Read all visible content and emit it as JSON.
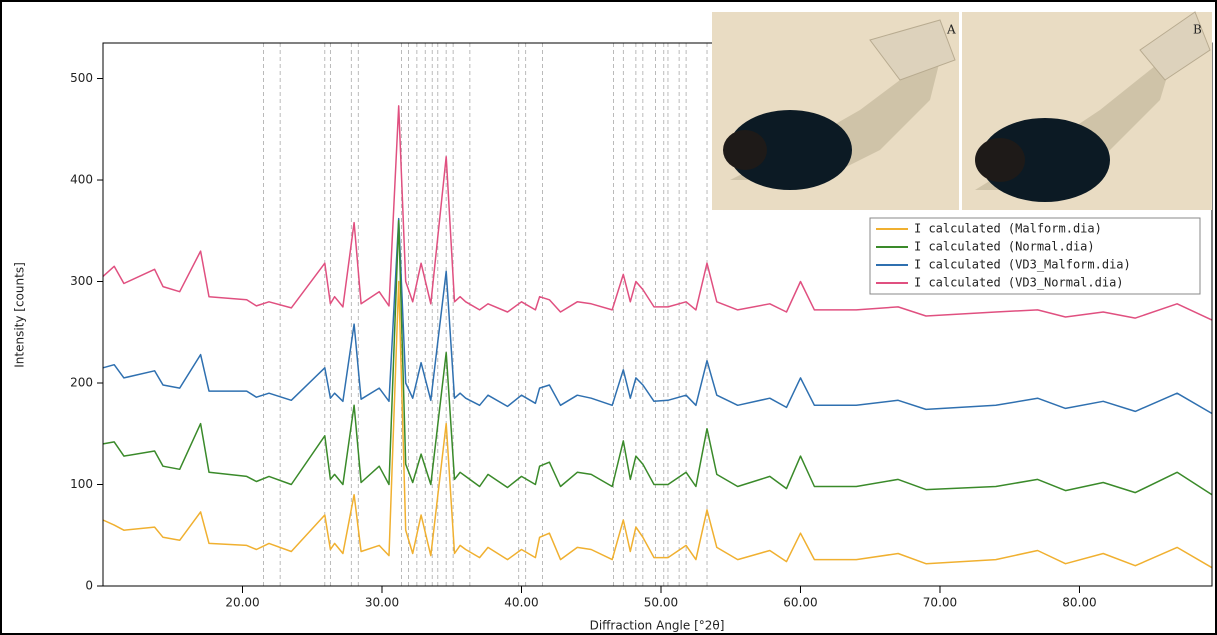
{
  "chart_data": {
    "type": "line",
    "xlabel": "Diffraction Angle [°2θ]",
    "ylabel": "Intensity [counts]",
    "x": [
      10,
      10.8,
      11.5,
      13.7,
      14.3,
      15.5,
      17.0,
      17.6,
      20.3,
      21.0,
      21.9,
      23.5,
      25.9,
      26.3,
      26.6,
      27.2,
      28.0,
      28.5,
      29.8,
      30.5,
      31.2,
      31.7,
      32.2,
      32.8,
      33.5,
      34.6,
      35.2,
      35.6,
      36.0,
      37.0,
      37.6,
      39.0,
      40.0,
      41.0,
      41.3,
      42.0,
      42.8,
      44.0,
      45.0,
      46.5,
      47.3,
      47.8,
      48.2,
      48.7,
      49.5,
      50.5,
      51.8,
      52.5,
      53.3,
      54.0,
      55.5,
      57.8,
      59.0,
      60.0,
      61.0,
      64.0,
      67.0,
      69.0,
      74.0,
      77.0,
      79.0,
      81.7,
      84.0,
      87.0,
      89.5
    ],
    "series": [
      {
        "name": "I calculated (Malform.dia)",
        "color": "#f0b030",
        "values": [
          65,
          60,
          55,
          58,
          48,
          45,
          73,
          42,
          40,
          36,
          42,
          34,
          70,
          36,
          42,
          32,
          90,
          34,
          40,
          30,
          300,
          55,
          32,
          70,
          30,
          160,
          32,
          40,
          36,
          28,
          38,
          26,
          36,
          28,
          48,
          52,
          26,
          38,
          36,
          26,
          65,
          34,
          58,
          48,
          28,
          28,
          40,
          26,
          75,
          38,
          26,
          35,
          24,
          52,
          26,
          26,
          32,
          22,
          26,
          35,
          22,
          32,
          20,
          38,
          18
        ]
      },
      {
        "name": "I calculated (Normal.dia)",
        "color": "#3a8a2a",
        "values": [
          140,
          142,
          128,
          133,
          118,
          115,
          160,
          112,
          108,
          103,
          108,
          100,
          148,
          105,
          110,
          100,
          178,
          102,
          118,
          100,
          360,
          120,
          102,
          130,
          100,
          230,
          105,
          112,
          108,
          98,
          110,
          97,
          108,
          100,
          118,
          122,
          98,
          112,
          110,
          98,
          143,
          105,
          128,
          120,
          100,
          100,
          112,
          98,
          155,
          110,
          98,
          108,
          96,
          128,
          98,
          98,
          105,
          95,
          98,
          105,
          94,
          102,
          92,
          112,
          90
        ]
      },
      {
        "name": "I calculated (VD3_Malform.dia)",
        "color": "#2f70b0",
        "values": [
          215,
          218,
          205,
          212,
          198,
          195,
          228,
          192,
          192,
          186,
          190,
          183,
          215,
          185,
          190,
          182,
          258,
          184,
          195,
          182,
          362,
          200,
          185,
          220,
          183,
          310,
          185,
          190,
          185,
          178,
          188,
          177,
          188,
          180,
          195,
          198,
          178,
          188,
          185,
          178,
          213,
          185,
          205,
          198,
          182,
          183,
          188,
          178,
          222,
          188,
          178,
          185,
          176,
          205,
          178,
          178,
          183,
          174,
          178,
          185,
          175,
          182,
          172,
          190,
          170
        ]
      },
      {
        "name": "I calculated (VD3_Normal.dia)",
        "color": "#e05080",
        "values": [
          305,
          315,
          298,
          312,
          295,
          290,
          330,
          285,
          282,
          276,
          280,
          274,
          318,
          278,
          285,
          275,
          358,
          278,
          290,
          276,
          473,
          300,
          280,
          318,
          278,
          423,
          280,
          285,
          280,
          272,
          278,
          270,
          280,
          272,
          285,
          282,
          270,
          280,
          278,
          272,
          307,
          280,
          300,
          292,
          275,
          275,
          280,
          272,
          318,
          280,
          272,
          278,
          270,
          300,
          272,
          272,
          275,
          266,
          270,
          272,
          265,
          270,
          264,
          278,
          262
        ]
      }
    ],
    "xlim": [
      10,
      89.5
    ],
    "ylim": [
      0,
      535
    ],
    "xticks": [
      {
        "value": 20,
        "label": "20.00"
      },
      {
        "value": 30,
        "label": "30.00"
      },
      {
        "value": 40,
        "label": "40.00"
      },
      {
        "value": 50,
        "label": "50.00"
      },
      {
        "value": 60,
        "label": "60.00"
      },
      {
        "value": 70,
        "label": "70.00"
      },
      {
        "value": 80,
        "label": "80.00"
      }
    ],
    "yticks": [
      0,
      100,
      200,
      300,
      400,
      500
    ],
    "reference_lines": [
      21.5,
      22.7,
      25.9,
      26.3,
      27.8,
      28.3,
      31.4,
      31.9,
      32.5,
      33.1,
      33.6,
      34.0,
      34.6,
      35.1,
      36.3,
      39.8,
      40.3,
      41.5,
      46.6,
      47.3,
      48.2,
      48.7,
      49.6,
      50.2,
      50.5,
      51.3,
      51.8,
      53.3
    ],
    "legend": "upper right",
    "photo_labels": [
      "A",
      "B"
    ]
  }
}
